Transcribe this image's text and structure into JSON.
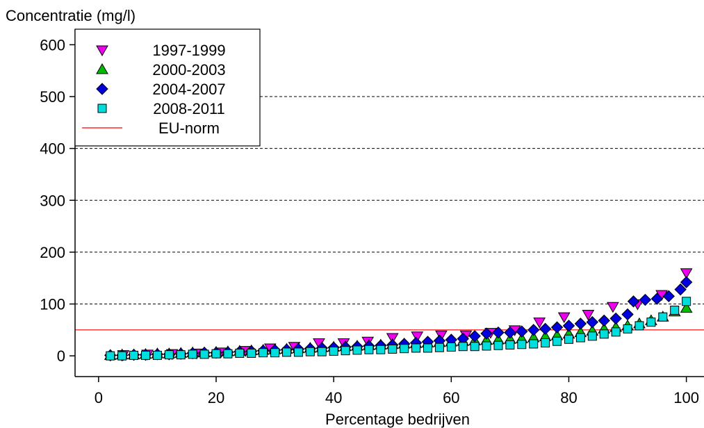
{
  "chart_data": {
    "type": "scatter",
    "title": "",
    "ylabel": "Concentratie (mg/l)",
    "xlabel": "Percentage bedrijven",
    "xlim": [
      -4,
      103
    ],
    "ylim": [
      -40,
      630
    ],
    "x_ticks": [
      0,
      20,
      40,
      60,
      80,
      100
    ],
    "x_tick_labels": [
      "0",
      "20",
      "40",
      "60",
      "80",
      "100"
    ],
    "y_ticks": [
      0,
      100,
      200,
      300,
      400,
      500,
      600
    ],
    "y_tick_labels": [
      "0",
      "100",
      "200",
      "300",
      "400",
      "500",
      "600"
    ],
    "grid": "dashed horizontal lines at 100-500",
    "legend_position": "top-left",
    "series": [
      {
        "name": "1997-1999",
        "marker": "triangle-down",
        "color": "#ee00ee",
        "x": [
          4.2,
          8.3,
          12.5,
          16.7,
          20.8,
          25.0,
          29.2,
          33.3,
          37.5,
          41.7,
          45.8,
          50.0,
          54.2,
          58.3,
          62.5,
          66.7,
          70.8,
          75.0,
          79.2,
          83.3,
          87.5,
          91.7,
          95.8,
          100.0
        ],
        "y": [
          2,
          3,
          4,
          5,
          7,
          10,
          15,
          18,
          25,
          25,
          28,
          35,
          38,
          40,
          40,
          45,
          50,
          65,
          75,
          80,
          95,
          100,
          118,
          160
        ]
      },
      {
        "name": "2000-2003",
        "marker": "triangle-up",
        "color": "#00bb00",
        "x": [
          2,
          4,
          6,
          8,
          10,
          12,
          14,
          16,
          18,
          20,
          22,
          24,
          26,
          28,
          30,
          32,
          34,
          36,
          38,
          40,
          42,
          44,
          46,
          48,
          50,
          52,
          54,
          56,
          58,
          60,
          62,
          64,
          66,
          68,
          70,
          72,
          74,
          76,
          78,
          80,
          82,
          84,
          86,
          88,
          90,
          92,
          94,
          96,
          98,
          100
        ],
        "y": [
          1,
          2,
          2,
          3,
          4,
          4,
          5,
          6,
          6,
          7,
          8,
          9,
          10,
          11,
          12,
          13,
          14,
          15,
          16,
          17,
          18,
          19,
          20,
          21,
          22,
          23,
          24,
          25,
          26,
          27,
          28,
          29,
          30,
          31,
          32,
          33,
          35,
          37,
          39,
          42,
          45,
          48,
          52,
          55,
          58,
          62,
          68,
          75,
          85,
          92
        ]
      },
      {
        "name": "2004-2007",
        "marker": "diamond",
        "color": "#0000dd",
        "x": [
          2,
          4,
          6,
          8,
          10,
          12,
          14,
          16,
          18,
          20,
          22,
          24,
          26,
          28,
          30,
          32,
          34,
          36,
          38,
          40,
          42,
          44,
          46,
          48,
          50,
          52,
          54,
          56,
          58,
          60,
          62,
          64,
          66,
          68,
          70,
          72,
          74,
          76,
          78,
          80,
          82,
          84,
          86,
          88,
          90,
          91,
          93,
          95,
          97,
          99,
          100
        ],
        "y": [
          1,
          1,
          2,
          2,
          3,
          3,
          4,
          5,
          6,
          6,
          7,
          8,
          9,
          10,
          11,
          12,
          13,
          14,
          15,
          16,
          17,
          18,
          19,
          20,
          21,
          23,
          25,
          27,
          29,
          31,
          33,
          38,
          43,
          45,
          45,
          47,
          50,
          52,
          55,
          58,
          62,
          65,
          68,
          72,
          80,
          105,
          108,
          110,
          115,
          128,
          142
        ]
      },
      {
        "name": "2008-2011",
        "marker": "square",
        "color": "#00dddd",
        "x": [
          2,
          4,
          6,
          8,
          10,
          12,
          14,
          16,
          18,
          20,
          22,
          24,
          26,
          28,
          30,
          32,
          34,
          36,
          38,
          40,
          42,
          44,
          46,
          48,
          50,
          52,
          54,
          56,
          58,
          60,
          62,
          64,
          66,
          68,
          70,
          72,
          74,
          76,
          78,
          80,
          82,
          84,
          86,
          88,
          90,
          92,
          94,
          96,
          98,
          100
        ],
        "y": [
          0,
          0,
          1,
          1,
          1,
          2,
          2,
          3,
          3,
          4,
          4,
          5,
          5,
          6,
          6,
          7,
          7,
          8,
          8,
          9,
          10,
          11,
          12,
          12,
          13,
          14,
          15,
          15,
          16,
          17,
          18,
          18,
          19,
          20,
          21,
          22,
          23,
          25,
          28,
          32,
          35,
          38,
          42,
          46,
          52,
          58,
          65,
          75,
          88,
          105
        ]
      }
    ],
    "reference_lines": [
      {
        "name": "EU-norm",
        "y": 50,
        "color": "#ff0000"
      }
    ],
    "legend": [
      {
        "label": "1997-1999",
        "marker": "triangle-down",
        "color": "#ee00ee"
      },
      {
        "label": "2000-2003",
        "marker": "triangle-up",
        "color": "#00bb00"
      },
      {
        "label": "2004-2007",
        "marker": "diamond",
        "color": "#0000dd"
      },
      {
        "label": "2008-2011",
        "marker": "square",
        "color": "#00dddd"
      },
      {
        "label": "EU-norm",
        "marker": "line",
        "color": "#ff0000"
      }
    ]
  }
}
